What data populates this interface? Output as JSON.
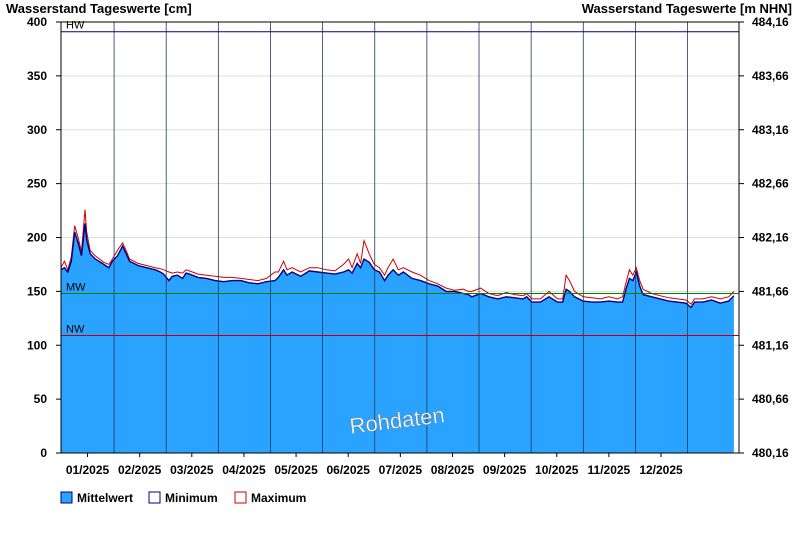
{
  "chart_data": {
    "type": "area",
    "title_left": "Wasserstand Tageswerte [cm]",
    "title_right": "Wasserstand Tageswerte [m NHN]",
    "ylim": [
      0,
      400
    ],
    "y_ticks": [
      0,
      50,
      100,
      150,
      200,
      250,
      300,
      350,
      400
    ],
    "y2_ticks": [
      "480,16",
      "480,66",
      "481,16",
      "481,66",
      "482,16",
      "482,66",
      "483,16",
      "483,66",
      "484,16"
    ],
    "x_labels": [
      "01/2025",
      "02/2025",
      "03/2025",
      "04/2025",
      "05/2025",
      "06/2025",
      "07/2025",
      "08/2025",
      "09/2025",
      "10/2025",
      "11/2025",
      "12/2025"
    ],
    "reference_lines": [
      {
        "label": "HW",
        "value": 391,
        "color": "#000080"
      },
      {
        "label": "MW",
        "value": 148,
        "color": "#008000"
      },
      {
        "label": "NW",
        "value": 109,
        "color": "#c00000"
      }
    ],
    "watermark": "Rohdaten",
    "x_range_days": [
      0,
      340
    ],
    "series": [
      {
        "name": "Mittelwert",
        "color": "#29a3ff",
        "points": [
          [
            0,
            170
          ],
          [
            2,
            172
          ],
          [
            4,
            168
          ],
          [
            6,
            178
          ],
          [
            8,
            205
          ],
          [
            10,
            195
          ],
          [
            12,
            183
          ],
          [
            14,
            213
          ],
          [
            15,
            198
          ],
          [
            17,
            185
          ],
          [
            20,
            180
          ],
          [
            25,
            175
          ],
          [
            28,
            172
          ],
          [
            30,
            178
          ],
          [
            33,
            183
          ],
          [
            36,
            192
          ],
          [
            38,
            185
          ],
          [
            40,
            178
          ],
          [
            45,
            174
          ],
          [
            50,
            172
          ],
          [
            55,
            170
          ],
          [
            58,
            168
          ],
          [
            60,
            166
          ],
          [
            63,
            160
          ],
          [
            65,
            164
          ],
          [
            68,
            165
          ],
          [
            71,
            162
          ],
          [
            73,
            167
          ],
          [
            75,
            166
          ],
          [
            80,
            163
          ],
          [
            85,
            162
          ],
          [
            90,
            160
          ],
          [
            95,
            159
          ],
          [
            100,
            160
          ],
          [
            105,
            160
          ],
          [
            110,
            158
          ],
          [
            115,
            157
          ],
          [
            120,
            159
          ],
          [
            125,
            160
          ],
          [
            127,
            163
          ],
          [
            130,
            170
          ],
          [
            132,
            165
          ],
          [
            135,
            168
          ],
          [
            140,
            164
          ],
          [
            145,
            169
          ],
          [
            150,
            168
          ],
          [
            155,
            167
          ],
          [
            160,
            166
          ],
          [
            165,
            168
          ],
          [
            168,
            170
          ],
          [
            170,
            167
          ],
          [
            173,
            176
          ],
          [
            175,
            172
          ],
          [
            177,
            180
          ],
          [
            180,
            177
          ],
          [
            183,
            170
          ],
          [
            186,
            168
          ],
          [
            189,
            160
          ],
          [
            191,
            165
          ],
          [
            194,
            170
          ],
          [
            197,
            165
          ],
          [
            200,
            168
          ],
          [
            205,
            162
          ],
          [
            210,
            160
          ],
          [
            215,
            157
          ],
          [
            220,
            155
          ],
          [
            225,
            150
          ],
          [
            230,
            150
          ],
          [
            235,
            148
          ],
          [
            238,
            147
          ],
          [
            240,
            145
          ],
          [
            245,
            148
          ],
          [
            250,
            145
          ],
          [
            255,
            143
          ],
          [
            260,
            145
          ],
          [
            265,
            144
          ],
          [
            270,
            143
          ],
          [
            272,
            145
          ],
          [
            275,
            140
          ],
          [
            280,
            140
          ],
          [
            285,
            145
          ],
          [
            290,
            140
          ],
          [
            293,
            140
          ],
          [
            295,
            152
          ],
          [
            297,
            150
          ],
          [
            300,
            145
          ],
          [
            305,
            141
          ],
          [
            310,
            140
          ],
          [
            315,
            140
          ],
          [
            320,
            141
          ],
          [
            325,
            140
          ],
          [
            328,
            140
          ],
          [
            330,
            152
          ],
          [
            332,
            162
          ],
          [
            334,
            160
          ],
          [
            336,
            168
          ],
          [
            338,
            155
          ],
          [
            340,
            147
          ],
          [
            345,
            145
          ],
          [
            350,
            143
          ],
          [
            355,
            141
          ],
          [
            360,
            140
          ],
          [
            365,
            139
          ],
          [
            368,
            135
          ],
          [
            370,
            140
          ],
          [
            375,
            140
          ],
          [
            380,
            142
          ],
          [
            385,
            139
          ],
          [
            390,
            141
          ],
          [
            393,
            146
          ]
        ]
      },
      {
        "name": "Minimum",
        "color": "#000080",
        "points": []
      },
      {
        "name": "Maximum",
        "color": "#cc0000",
        "points": [
          [
            0,
            172
          ],
          [
            2,
            178
          ],
          [
            4,
            170
          ],
          [
            6,
            182
          ],
          [
            8,
            211
          ],
          [
            10,
            200
          ],
          [
            12,
            187
          ],
          [
            14,
            226
          ],
          [
            15,
            205
          ],
          [
            17,
            188
          ],
          [
            20,
            183
          ],
          [
            25,
            177
          ],
          [
            28,
            175
          ],
          [
            30,
            180
          ],
          [
            33,
            188
          ],
          [
            36,
            195
          ],
          [
            38,
            188
          ],
          [
            40,
            180
          ],
          [
            45,
            176
          ],
          [
            50,
            174
          ],
          [
            55,
            172
          ],
          [
            58,
            171
          ],
          [
            60,
            170
          ],
          [
            63,
            168
          ],
          [
            65,
            167
          ],
          [
            68,
            168
          ],
          [
            71,
            167
          ],
          [
            73,
            170
          ],
          [
            75,
            169
          ],
          [
            80,
            166
          ],
          [
            85,
            165
          ],
          [
            90,
            164
          ],
          [
            95,
            163
          ],
          [
            100,
            163
          ],
          [
            105,
            162
          ],
          [
            110,
            161
          ],
          [
            115,
            160
          ],
          [
            120,
            162
          ],
          [
            125,
            168
          ],
          [
            127,
            168
          ],
          [
            130,
            178
          ],
          [
            132,
            170
          ],
          [
            135,
            172
          ],
          [
            140,
            168
          ],
          [
            145,
            172
          ],
          [
            150,
            172
          ],
          [
            155,
            170
          ],
          [
            160,
            169
          ],
          [
            165,
            175
          ],
          [
            168,
            180
          ],
          [
            170,
            172
          ],
          [
            173,
            185
          ],
          [
            175,
            176
          ],
          [
            177,
            197
          ],
          [
            180,
            185
          ],
          [
            183,
            175
          ],
          [
            186,
            172
          ],
          [
            189,
            165
          ],
          [
            191,
            172
          ],
          [
            194,
            180
          ],
          [
            197,
            170
          ],
          [
            200,
            172
          ],
          [
            205,
            168
          ],
          [
            210,
            165
          ],
          [
            215,
            160
          ],
          [
            220,
            157
          ],
          [
            225,
            153
          ],
          [
            230,
            151
          ],
          [
            235,
            152
          ],
          [
            238,
            150
          ],
          [
            240,
            150
          ],
          [
            245,
            153
          ],
          [
            250,
            148
          ],
          [
            255,
            146
          ],
          [
            260,
            149
          ],
          [
            265,
            147
          ],
          [
            270,
            146
          ],
          [
            272,
            148
          ],
          [
            275,
            143
          ],
          [
            280,
            143
          ],
          [
            285,
            150
          ],
          [
            290,
            143
          ],
          [
            293,
            143
          ],
          [
            295,
            165
          ],
          [
            297,
            160
          ],
          [
            300,
            150
          ],
          [
            305,
            145
          ],
          [
            310,
            144
          ],
          [
            315,
            143
          ],
          [
            320,
            145
          ],
          [
            325,
            143
          ],
          [
            328,
            145
          ],
          [
            330,
            158
          ],
          [
            332,
            170
          ],
          [
            334,
            165
          ],
          [
            336,
            172
          ],
          [
            338,
            160
          ],
          [
            340,
            152
          ],
          [
            345,
            148
          ],
          [
            350,
            146
          ],
          [
            355,
            144
          ],
          [
            360,
            143
          ],
          [
            365,
            142
          ],
          [
            368,
            138
          ],
          [
            370,
            143
          ],
          [
            375,
            143
          ],
          [
            380,
            145
          ],
          [
            385,
            143
          ],
          [
            390,
            145
          ],
          [
            393,
            150
          ]
        ]
      }
    ]
  },
  "legend": [
    {
      "label": "Mittelwert",
      "color": "#29a3ff",
      "border": "#000080"
    },
    {
      "label": "Minimum",
      "color": "#ffffff",
      "border": "#000080"
    },
    {
      "label": "Maximum",
      "color": "#ffffff",
      "border": "#cc0000"
    }
  ]
}
